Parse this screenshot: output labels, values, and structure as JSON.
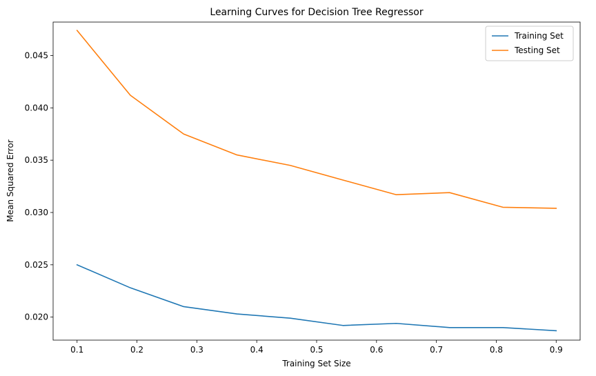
{
  "chart_data": {
    "type": "line",
    "title": "Learning Curves for Decision Tree Regressor",
    "xlabel": "Training Set Size",
    "ylabel": "Mean Squared Error",
    "xlim": [
      0.06,
      0.94
    ],
    "ylim": [
      0.0178,
      0.0482
    ],
    "x_ticks": [
      0.1,
      0.2,
      0.3,
      0.4,
      0.5,
      0.6,
      0.7,
      0.8,
      0.9
    ],
    "y_ticks": [
      0.02,
      0.025,
      0.03,
      0.035,
      0.04,
      0.045
    ],
    "x_tick_labels": [
      "0.1",
      "0.2",
      "0.3",
      "0.4",
      "0.5",
      "0.6",
      "0.7",
      "0.8",
      "0.9"
    ],
    "y_tick_labels": [
      "0.020",
      "0.025",
      "0.030",
      "0.035",
      "0.040",
      "0.045"
    ],
    "x": [
      0.1,
      0.189,
      0.278,
      0.367,
      0.456,
      0.544,
      0.633,
      0.722,
      0.811,
      0.9
    ],
    "series": [
      {
        "name": "Training Set",
        "color": "#1f77b4",
        "values": [
          0.025,
          0.0228,
          0.021,
          0.0203,
          0.0199,
          0.0192,
          0.0194,
          0.019,
          0.019,
          0.0187
        ]
      },
      {
        "name": "Testing Set",
        "color": "#ff7f0e",
        "values": [
          0.0474,
          0.0412,
          0.0375,
          0.0355,
          0.0345,
          0.0331,
          0.0317,
          0.0319,
          0.0305,
          0.0304
        ]
      }
    ],
    "grid": false,
    "legend_position": "top-right"
  }
}
